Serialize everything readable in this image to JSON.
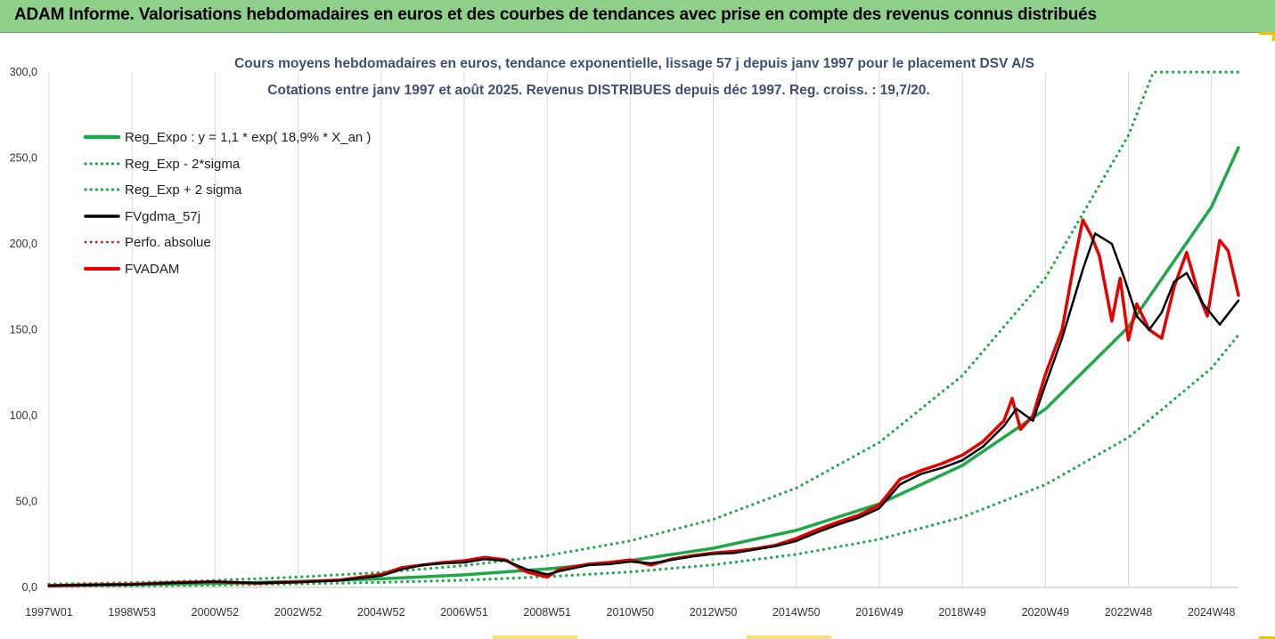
{
  "header": {
    "title": "ADAM Informe. Valorisations hebdomadaires en euros et des courbes de tendances avec prise en compte des revenus connus distribués"
  },
  "chart_data": {
    "type": "line",
    "title": "Cours moyens hebdomadaires en euros, tendance exponentielle, lissage 57 j depuis janv 1997 pour le placement DSV A/S",
    "subtitle": "Cotations entre janv 1997 et août 2025.  Revenus DISTRIBUES depuis déc 1997. Reg. croiss. : 19,7/20.",
    "xlabel": "",
    "ylabel": "",
    "ylim": [
      0,
      300
    ],
    "yticks": [
      "0,0",
      "50,0",
      "100,0",
      "150,0",
      "200,0",
      "250,0",
      "300,0"
    ],
    "x_tick_labels": [
      "1997W01",
      "1998W53",
      "2000W52",
      "2002W52",
      "2004W52",
      "2006W51",
      "2008W51",
      "2010W50",
      "2012W50",
      "2014W50",
      "2016W49",
      "2018W49",
      "2020W49",
      "2022W48",
      "2024W48"
    ],
    "x_tick_years": [
      1997.0,
      1999.0,
      2001.0,
      2003.0,
      2005.0,
      2007.0,
      2009.0,
      2011.0,
      2013.0,
      2015.0,
      2017.0,
      2019.0,
      2021.0,
      2023.0,
      2025.0
    ],
    "x_range": [
      1997.0,
      2025.65
    ],
    "grid": "vertical",
    "legend_position": "top-left",
    "series": [
      {
        "name": "Reg_Expo : y = 1,1 * exp( 18,9% *  X_an )",
        "style": "solid",
        "color": "#1fa84a",
        "x": [
          1997.0,
          1999.0,
          2001.0,
          2003.0,
          2005.0,
          2007.0,
          2009.0,
          2011.0,
          2013.0,
          2015.0,
          2017.0,
          2019.0,
          2021.0,
          2023.0,
          2025.0,
          2025.65
        ],
        "values": [
          1.1,
          1.6,
          2.3,
          3.4,
          5.0,
          7.3,
          10.7,
          15.6,
          22.8,
          33.2,
          48.6,
          71.0,
          103.8,
          151.6,
          221.5,
          256.0
        ]
      },
      {
        "name": "Reg_Exp - 2*sigma",
        "style": "dotted",
        "color": "#1fa84a",
        "x": [
          1997.0,
          1999.0,
          2001.0,
          2003.0,
          2005.0,
          2007.0,
          2009.0,
          2011.0,
          2013.0,
          2015.0,
          2017.0,
          2019.0,
          2021.0,
          2023.0,
          2025.0,
          2025.65
        ],
        "values": [
          0.6,
          0.9,
          1.3,
          2.0,
          2.9,
          4.2,
          6.2,
          9.0,
          13.1,
          19.2,
          28.0,
          40.9,
          59.8,
          87.3,
          127.6,
          147.0
        ]
      },
      {
        "name": "Reg_Exp + 2 sigma",
        "style": "dotted",
        "color": "#1fa84a",
        "x": [
          1997.0,
          1999.0,
          2001.0,
          2003.0,
          2005.0,
          2007.0,
          2009.0,
          2011.0,
          2013.0,
          2015.0,
          2017.0,
          2019.0,
          2021.0,
          2023.0,
          2023.6,
          2025.65
        ],
        "values": [
          1.9,
          2.8,
          4.1,
          6.0,
          8.7,
          12.7,
          18.5,
          27.1,
          39.6,
          57.8,
          84.4,
          123.3,
          180.1,
          263.1,
          300.0,
          300.0
        ]
      },
      {
        "name": "FVgdma_57j",
        "style": "solid",
        "color": "#000000",
        "x": [
          1997.0,
          1998.0,
          1999.0,
          2000.0,
          2001.0,
          2002.0,
          2003.0,
          2004.0,
          2005.0,
          2005.5,
          2006.0,
          2006.5,
          2007.0,
          2007.5,
          2008.0,
          2008.5,
          2009.0,
          2009.3,
          2010.0,
          2010.5,
          2011.0,
          2011.5,
          2012.0,
          2012.5,
          2013.0,
          2013.5,
          2014.0,
          2014.5,
          2015.0,
          2015.5,
          2016.0,
          2016.5,
          2017.0,
          2017.5,
          2018.0,
          2018.5,
          2019.0,
          2019.5,
          2020.0,
          2020.3,
          2020.7,
          2021.0,
          2021.4,
          2021.9,
          2022.2,
          2022.6,
          2022.9,
          2023.2,
          2023.5,
          2023.8,
          2024.1,
          2024.4,
          2024.8,
          2025.2,
          2025.65
        ],
        "values": [
          1.0,
          1.4,
          1.7,
          2.6,
          3.2,
          2.6,
          3.0,
          4.0,
          6.8,
          10.5,
          13.0,
          14.0,
          14.5,
          16.5,
          15.5,
          10.5,
          7.5,
          9.5,
          13.0,
          13.5,
          15.0,
          14.0,
          16.0,
          18.0,
          19.5,
          20.0,
          22.0,
          24.0,
          27.0,
          32.0,
          36.5,
          40.5,
          46.0,
          60.0,
          66.0,
          69.5,
          74.0,
          82.0,
          94.0,
          104.0,
          97.0,
          118.0,
          145.0,
          185.0,
          206.0,
          200.0,
          180.0,
          158.0,
          150.0,
          160.0,
          178.0,
          183.0,
          165.0,
          153.0,
          167.0
        ]
      },
      {
        "name": "Perfo. absolue",
        "style": "dotted",
        "color": "#e00000",
        "x": [],
        "values": []
      },
      {
        "name": "FVADAM",
        "style": "solid",
        "color": "#e60000",
        "x": [
          1997.0,
          1998.0,
          1999.0,
          2000.0,
          2001.0,
          2002.0,
          2003.0,
          2004.0,
          2005.0,
          2005.5,
          2006.0,
          2006.5,
          2007.0,
          2007.5,
          2008.0,
          2008.5,
          2009.0,
          2009.3,
          2010.0,
          2010.5,
          2011.0,
          2011.5,
          2012.0,
          2012.5,
          2013.0,
          2013.5,
          2014.0,
          2014.5,
          2015.0,
          2015.5,
          2016.0,
          2016.5,
          2017.0,
          2017.5,
          2018.0,
          2018.5,
          2019.0,
          2019.5,
          2020.0,
          2020.2,
          2020.4,
          2020.7,
          2021.0,
          2021.4,
          2021.7,
          2021.9,
          2022.1,
          2022.3,
          2022.6,
          2022.8,
          2023.0,
          2023.2,
          2023.5,
          2023.8,
          2024.1,
          2024.4,
          2024.7,
          2024.9,
          2025.2,
          2025.4,
          2025.65
        ],
        "values": [
          1.0,
          1.5,
          1.8,
          2.8,
          3.3,
          2.4,
          3.2,
          4.3,
          7.5,
          11.5,
          13.0,
          14.5,
          15.5,
          17.5,
          16.0,
          9.0,
          6.0,
          10.5,
          13.5,
          14.5,
          16.0,
          13.0,
          16.5,
          18.5,
          20.0,
          21.0,
          22.5,
          24.5,
          28.5,
          33.5,
          38.0,
          42.0,
          48.0,
          63.0,
          68.0,
          72.0,
          77.0,
          85.0,
          97.0,
          110.0,
          92.0,
          100.0,
          124.0,
          150.0,
          190.0,
          214.0,
          205.0,
          193.0,
          155.0,
          180.0,
          144.0,
          165.0,
          150.0,
          145.0,
          175.0,
          195.0,
          170.0,
          158.0,
          202.0,
          196.0,
          170.0
        ]
      }
    ]
  }
}
